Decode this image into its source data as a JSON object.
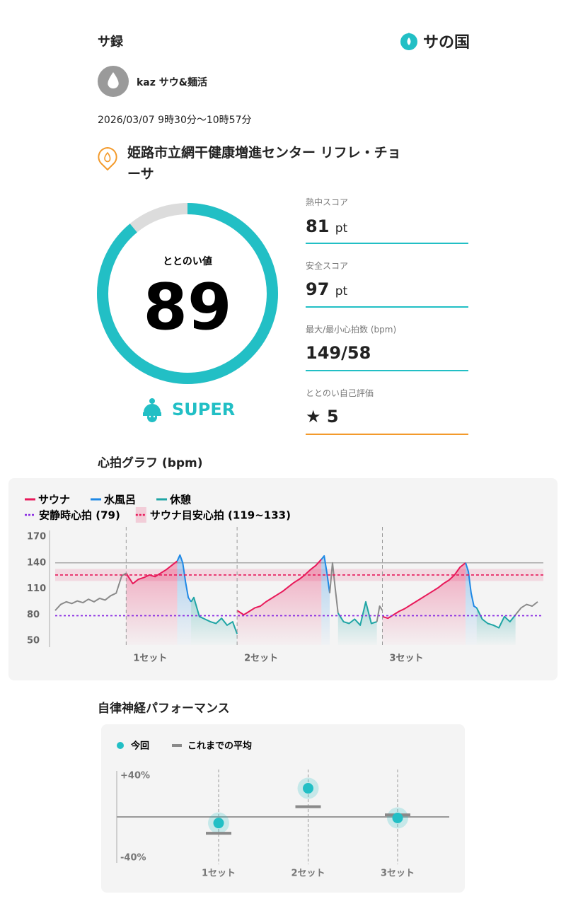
{
  "header": {
    "title": "サ録",
    "logo": "サの国"
  },
  "profile": {
    "name": "kaz サウ&麺活"
  },
  "session": {
    "datetime": "2026/03/07 9時30分〜10時57分"
  },
  "facility": {
    "name": "姫路市立網干健康増進センター リフレ・チョーサ"
  },
  "score": {
    "label": "ととのい値",
    "value": 89,
    "max": 100,
    "rank": "SUPER"
  },
  "stats": [
    {
      "label": "熱中スコア",
      "value": 81,
      "unit": "pt"
    },
    {
      "label": "安全スコア",
      "value": 97,
      "unit": "pt"
    },
    {
      "label": "最大/最小心拍数 (bpm)",
      "value": "149/58"
    },
    {
      "label": "ととのい自己評価",
      "value": 5
    }
  ],
  "chart_data": [
    {
      "type": "line",
      "title": "心拍グラフ (bpm)",
      "xlim": [
        0,
        87
      ],
      "ylim": [
        50,
        170
      ],
      "yticks": [
        50,
        80,
        110,
        140,
        170
      ],
      "series": [
        {
          "name": "サウナ",
          "color": "#e8195a",
          "x": [
            12.8,
            14,
            15,
            16,
            17,
            18,
            19,
            20,
            21,
            22,
            null,
            32.8,
            34,
            35,
            36,
            37,
            38,
            39,
            40,
            41,
            42,
            43,
            44,
            45,
            46,
            47,
            48,
            null,
            59,
            60,
            61,
            62,
            63,
            64,
            65,
            66,
            67,
            68,
            69,
            70,
            71,
            72,
            73,
            74
          ],
          "values": [
            128,
            116,
            121,
            123,
            126,
            124,
            128,
            132,
            137,
            142,
            null,
            85,
            80,
            84,
            88,
            90,
            95,
            99,
            103,
            107,
            112,
            117,
            121,
            126,
            132,
            137,
            144,
            null,
            78,
            76,
            80,
            84,
            87,
            91,
            95,
            99,
            103,
            107,
            111,
            116,
            120,
            126,
            135,
            140
          ]
        },
        {
          "name": "水風呂",
          "color": "#1e88e5",
          "x": [
            22,
            22.5,
            23,
            23.5,
            24,
            24.5,
            null,
            48,
            48.5,
            49,
            49.5,
            null,
            74,
            74.5,
            75,
            75.5,
            76
          ],
          "values": [
            142,
            149,
            140,
            118,
            100,
            95,
            null,
            144,
            148,
            128,
            105,
            null,
            140,
            130,
            105,
            90,
            88
          ]
        },
        {
          "name": "休憩",
          "color": "#1fa5a5",
          "x": [
            24.5,
            25,
            26,
            27,
            28,
            29,
            30,
            31,
            32,
            32.8,
            null,
            51,
            52,
            53,
            54,
            55,
            56,
            57,
            58,
            null,
            76,
            77,
            78,
            79,
            80,
            81,
            82,
            83
          ],
          "values": [
            95,
            100,
            78,
            75,
            72,
            70,
            76,
            68,
            72,
            58,
            null,
            82,
            72,
            70,
            75,
            68,
            95,
            70,
            72,
            null,
            88,
            75,
            70,
            68,
            65,
            78,
            72,
            80
          ]
        },
        {
          "color": "#8a8a8a",
          "x": [
            0,
            1,
            2,
            3,
            4,
            5,
            6,
            7,
            8,
            9,
            10,
            11,
            12,
            12.8,
            null,
            49.5,
            50,
            50.5,
            51,
            null,
            58,
            58.5,
            59,
            null,
            83,
            84,
            85,
            86,
            87
          ],
          "values": [
            85,
            92,
            95,
            93,
            96,
            94,
            98,
            95,
            99,
            97,
            102,
            105,
            125,
            128,
            null,
            105,
            140,
            110,
            82,
            null,
            72,
            90,
            85,
            null,
            80,
            88,
            92,
            90,
            95
          ]
        }
      ],
      "resting": {
        "label": "安静時心拍 (79)",
        "value": 79,
        "color": "#8a2be2"
      },
      "target": {
        "label": "サウナ目安心拍 (119~133)",
        "low": 119,
        "high": 133,
        "color": "#e8195a"
      },
      "sets": [
        "1セット",
        "2セット",
        "3セット"
      ]
    },
    {
      "type": "dot",
      "title": "自律神経パフォーマンス",
      "categories": [
        "1セット",
        "2セット",
        "3セット"
      ],
      "ylim": [
        -45,
        45
      ],
      "yticks": [
        {
          "value": 40,
          "label": "+40%"
        },
        {
          "value": -40,
          "label": "-40%"
        }
      ],
      "series": [
        {
          "name": "今回",
          "color": "#22bfc5",
          "values": [
            -6,
            28,
            -1
          ]
        },
        {
          "name": "これまでの平均",
          "color": "#8a8a8a",
          "values": [
            -16,
            10,
            2
          ]
        }
      ]
    }
  ]
}
